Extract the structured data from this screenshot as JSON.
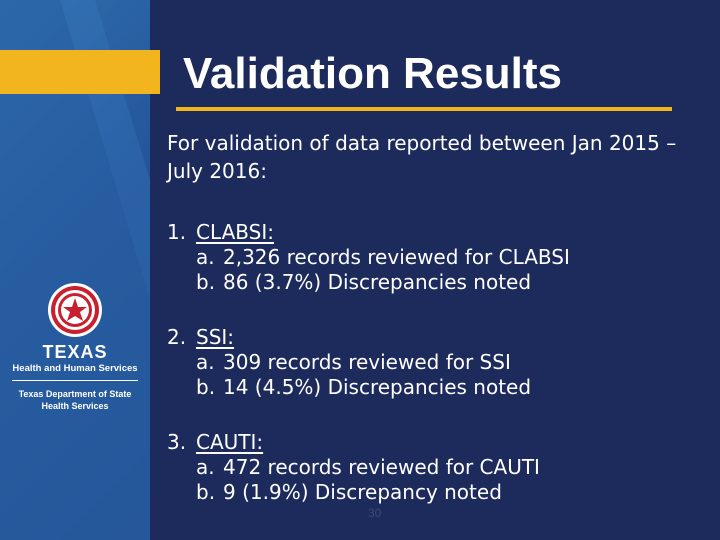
{
  "slide": {
    "title": "Validation Results",
    "intro": "For validation of data reported between Jan 2015 – July 2016:",
    "items": [
      {
        "number": "1.",
        "label": "CLABSI:",
        "subitems": [
          {
            "letter": "a.",
            "text": "2,326 records reviewed for CLABSI"
          },
          {
            "letter": "b.",
            "text": "86 (3.7%) Discrepancies noted"
          }
        ]
      },
      {
        "number": "2.",
        "label": "SSI:",
        "subitems": [
          {
            "letter": "a.",
            "text": "309 records reviewed for SSI"
          },
          {
            "letter": "b.",
            "text": "14 (4.5%) Discrepancies noted"
          }
        ]
      },
      {
        "number": "3.",
        "label": "CAUTI:",
        "subitems": [
          {
            "letter": "a.",
            "text": "472 records reviewed for CAUTI"
          },
          {
            "letter": "b.",
            "text": "9 (1.9%) Discrepancy noted"
          }
        ]
      }
    ],
    "page_number": "30"
  },
  "logo": {
    "word": "TEXAS",
    "subtitle": "Health and Human Services",
    "dept_line1": "Texas Department of State",
    "dept_line2": "Health Services"
  },
  "colors": {
    "background": "#1c2a5c",
    "accent": "#f2b51d",
    "panel": "#24559a",
    "seal_red": "#c8202f"
  }
}
